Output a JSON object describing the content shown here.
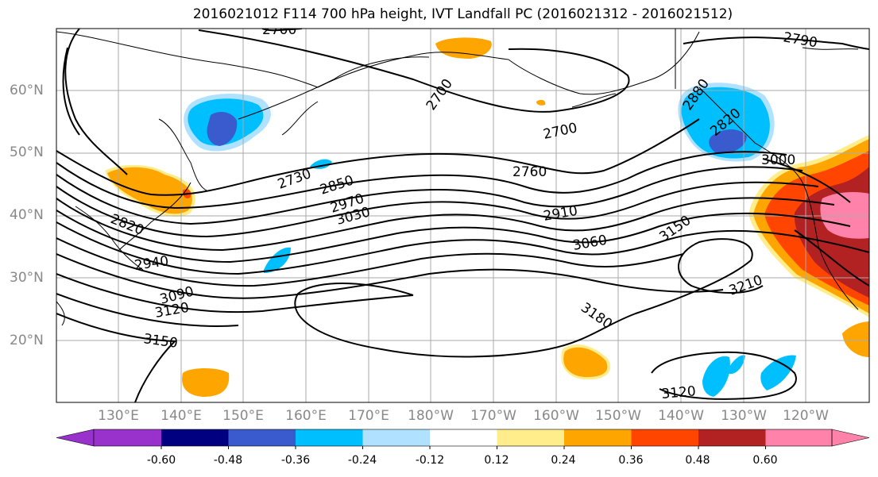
{
  "title": "2016021012 F114 700 hPa height, IVT Landfall PC (2016021312 - 2016021512)",
  "lat_labels": [
    "60°N",
    "50°N",
    "40°N",
    "30°N",
    "20°N"
  ],
  "lon_labels": [
    "130°E",
    "140°E",
    "150°E",
    "160°E",
    "170°E",
    "180°W",
    "170°W",
    "160°W",
    "150°W",
    "140°W",
    "130°W",
    "120°W"
  ],
  "contour_labels": [
    "2700",
    "2790",
    "2700",
    "2700",
    "2760",
    "2730",
    "2850",
    "2970",
    "3030",
    "2910",
    "2820",
    "2940",
    "3060",
    "3150",
    "3090",
    "3120",
    "3150",
    "3180",
    "3210",
    "3120",
    "3000",
    "2880",
    "2820"
  ],
  "colorbar": {
    "ticks": [
      "-0.60",
      "-0.48",
      "-0.36",
      "-0.24",
      "-0.12",
      "0.12",
      "0.24",
      "0.36",
      "0.48",
      "0.60"
    ],
    "colors": [
      "#9932cc",
      "#000080",
      "#3a5bcd",
      "#00bfff",
      "#b0e2ff",
      "#ffffff",
      "#ffec8b",
      "#ffa500",
      "#ff4500",
      "#b22222",
      "#ff82ab"
    ]
  }
}
